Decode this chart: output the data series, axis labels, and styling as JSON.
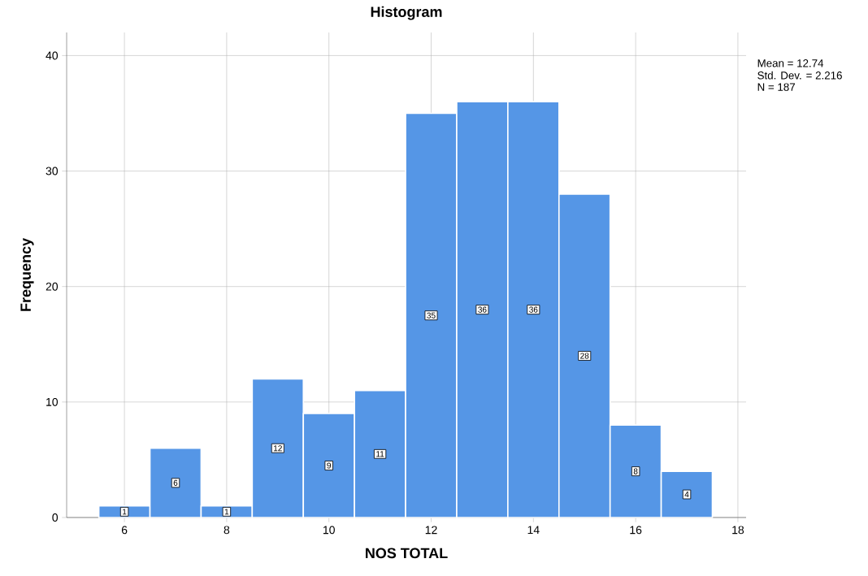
{
  "chart_data": {
    "type": "histogram",
    "title": "Histogram",
    "xlabel": "NOS TOTAL",
    "ylabel": "Frequency",
    "bins": [
      5.5,
      6.5,
      7.5,
      8.5,
      9.5,
      10.5,
      11.5,
      12.5,
      13.5,
      14.5,
      15.5,
      16.5,
      17.5
    ],
    "values": [
      1,
      6,
      1,
      12,
      9,
      11,
      35,
      36,
      36,
      28,
      8,
      4
    ],
    "color": "#5596e6",
    "data_labels": true,
    "grid": true,
    "xlim": [
      4.87,
      18.16
    ],
    "ylim": [
      0,
      42
    ],
    "xticks": [
      6,
      8,
      10,
      12,
      14,
      16,
      18
    ],
    "yticks": [
      0,
      10,
      20,
      30,
      40
    ],
    "annotations": [
      "Mean = 12.74",
      "Std. Dev. = 2.216",
      "N = 187"
    ]
  }
}
